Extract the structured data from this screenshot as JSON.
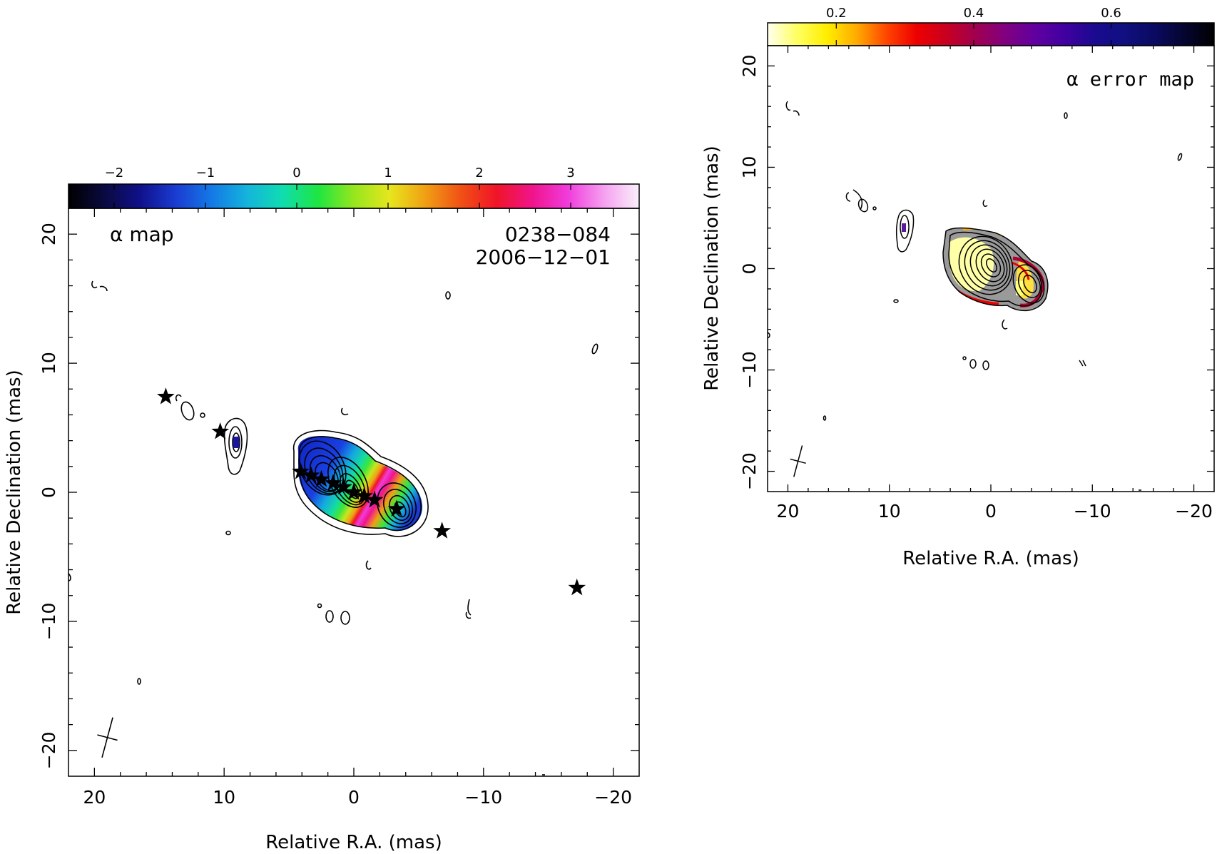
{
  "chart_data": [
    {
      "type": "heatmap",
      "panel": "alpha-map",
      "title": "α map",
      "annotations": [
        "0238−084",
        "2006−12−01"
      ],
      "xlabel": "Relative R.A. (mas)",
      "ylabel": "Relative Declination (mas)",
      "xlim": [
        22,
        -22
      ],
      "ylim": [
        -22,
        22
      ],
      "x_ticks": [
        20,
        10,
        0,
        -10,
        -20
      ],
      "x_tick_labels": [
        "20",
        "10",
        "0",
        "−10",
        "−20"
      ],
      "y_ticks": [
        20,
        10,
        0,
        -10,
        -20
      ],
      "y_tick_labels": [
        "20",
        "10",
        "0",
        "−10",
        "−20"
      ],
      "colorbar": {
        "range": [
          -2.5,
          3.75
        ],
        "ticks": [
          -2,
          -1,
          0,
          1,
          2,
          3
        ],
        "tick_labels": [
          "−2",
          "−1",
          "0",
          "1",
          "2",
          "3"
        ],
        "palette": [
          "#000000",
          "#0a0a40",
          "#10108a",
          "#1a3cd2",
          "#1478e6",
          "#14b4dc",
          "#10dcb0",
          "#1ee640",
          "#96e61e",
          "#e6e61e",
          "#f0a014",
          "#f05014",
          "#f01428",
          "#f0148c",
          "#f03cdc",
          "#f5a0f0",
          "#faf0fa"
        ]
      },
      "stars": [
        {
          "x": 14.5,
          "y": 7.4
        },
        {
          "x": 10.3,
          "y": 4.7
        },
        {
          "x": 4.1,
          "y": 1.6
        },
        {
          "x": 3.3,
          "y": 1.3
        },
        {
          "x": 2.5,
          "y": 1.0
        },
        {
          "x": 1.6,
          "y": 0.7
        },
        {
          "x": 0.8,
          "y": 0.4
        },
        {
          "x": 0.0,
          "y": 0.0
        },
        {
          "x": -0.8,
          "y": -0.3
        },
        {
          "x": -1.6,
          "y": -0.6
        },
        {
          "x": -3.3,
          "y": -1.3
        },
        {
          "x": -6.8,
          "y": -3.0
        },
        {
          "x": -17.2,
          "y": -7.4
        }
      ],
      "beam": {
        "x": 19.0,
        "y": -19.0,
        "major": 3.2,
        "minor": 1.6,
        "pa_deg": -75
      }
    },
    {
      "type": "heatmap",
      "panel": "alpha-error-map",
      "title": "α error map",
      "xlabel": "Relative R.A. (mas)",
      "ylabel": "Relative Declination (mas)",
      "xlim": [
        22,
        -22
      ],
      "ylim": [
        -22,
        22
      ],
      "x_ticks": [
        20,
        10,
        0,
        -10,
        -20
      ],
      "x_tick_labels": [
        "20",
        "10",
        "0",
        "−10",
        "−20"
      ],
      "y_ticks": [
        20,
        10,
        0,
        -10,
        -20
      ],
      "y_tick_labels": [
        "20",
        "10",
        "0",
        "−10",
        "−20"
      ],
      "colorbar": {
        "range": [
          0.1,
          0.75
        ],
        "ticks": [
          0.2,
          0.4,
          0.6
        ],
        "tick_labels": [
          "0.2",
          "0.4",
          "0.6"
        ],
        "palette": [
          "#fffff0",
          "#ffff60",
          "#ffee00",
          "#ffaa00",
          "#ff4400",
          "#ee0000",
          "#c80020",
          "#a00050",
          "#800080",
          "#6000a0",
          "#4000a0",
          "#1a0a90",
          "#101080",
          "#0a0a60",
          "#050530",
          "#000000"
        ]
      },
      "beam": {
        "x": 19.0,
        "y": -19.0,
        "major": 3.2,
        "minor": 1.6,
        "pa_deg": -75
      }
    }
  ]
}
